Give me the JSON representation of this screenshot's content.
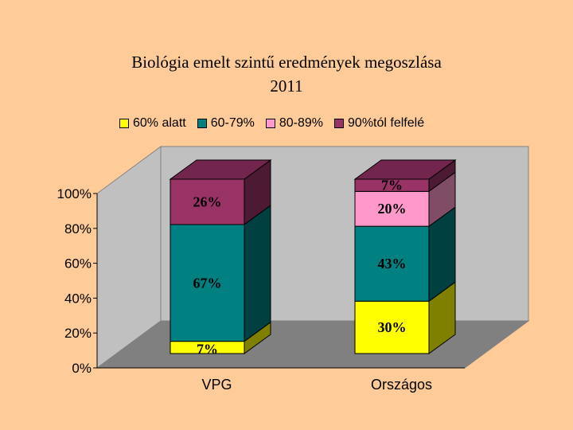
{
  "chart_data": {
    "type": "bar",
    "stacked": true,
    "percent": true,
    "three_d": true,
    "title_line1": "Biológia emelt szintű eredmények megoszlása",
    "title_line2": "2011",
    "categories": [
      "VPG",
      "Országos"
    ],
    "series": [
      {
        "name": "60% alatt",
        "color": "#FFFF00",
        "values": [
          7,
          30
        ],
        "labels": [
          "7%",
          "30%"
        ]
      },
      {
        "name": "60-79%",
        "color": "#008080",
        "values": [
          67,
          43
        ],
        "labels": [
          "67%",
          "43%"
        ]
      },
      {
        "name": "80-89%",
        "color": "#FF99CC",
        "values": [
          0,
          20
        ],
        "labels": [
          "",
          "20%"
        ]
      },
      {
        "name": "90%tól felfelé",
        "color": "#993366",
        "values": [
          26,
          7
        ],
        "labels": [
          "26%",
          "7%"
        ]
      }
    ],
    "ylim": [
      0,
      100
    ],
    "yticks": [
      "0%",
      "20%",
      "40%",
      "60%",
      "80%",
      "100%"
    ],
    "legend_position": "top",
    "grid": false,
    "colors": {
      "wall": "#C0C0C0",
      "floor": "#808080",
      "background": "#FFCC99"
    }
  }
}
